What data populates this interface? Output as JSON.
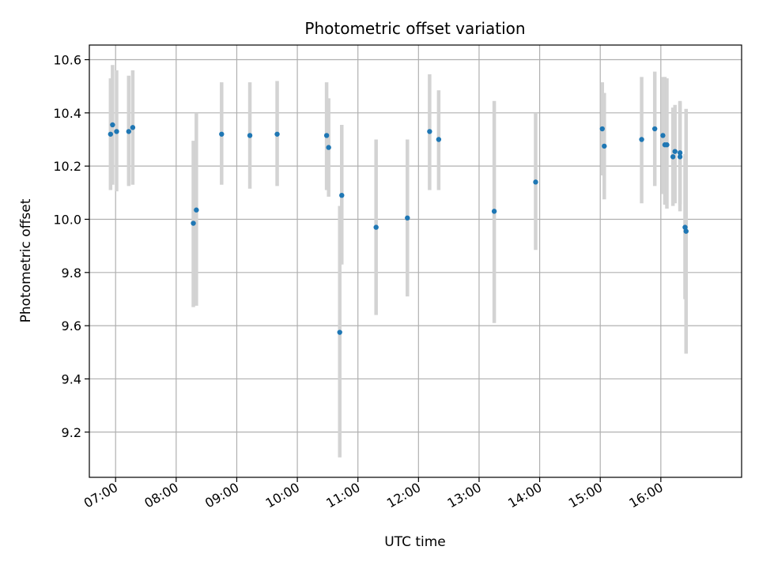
{
  "chart_data": {
    "type": "scatter",
    "title": "Photometric offset variation",
    "xlabel": "UTC time",
    "ylabel": "Photometric offset",
    "xlim": [
      "06:34",
      "17:20"
    ],
    "ylim": [
      9.03,
      10.655
    ],
    "x_ticks": [
      "07:00",
      "08:00",
      "09:00",
      "10:00",
      "11:00",
      "12:00",
      "13:00",
      "14:00",
      "15:00",
      "16:00"
    ],
    "y_ticks": [
      9.2,
      9.4,
      9.6,
      9.8,
      10.0,
      10.2,
      10.4,
      10.6
    ],
    "y_tick_labels": [
      "9.2",
      "9.4",
      "9.6",
      "9.8",
      "10.0",
      "10.2",
      "10.4",
      "10.6"
    ],
    "grid": true,
    "marker_color": "#1f77b4",
    "errorbar_color": "#d3d3d3",
    "points": [
      {
        "x": "06:55",
        "y": 10.32,
        "ylow": 10.11,
        "yhigh": 10.53
      },
      {
        "x": "06:57",
        "y": 10.355,
        "ylow": 10.13,
        "yhigh": 10.58
      },
      {
        "x": "07:01",
        "y": 10.33,
        "ylow": 10.105,
        "yhigh": 10.56
      },
      {
        "x": "07:13",
        "y": 10.33,
        "ylow": 10.125,
        "yhigh": 10.54
      },
      {
        "x": "07:17",
        "y": 10.345,
        "ylow": 10.13,
        "yhigh": 10.56
      },
      {
        "x": "08:17",
        "y": 9.985,
        "ylow": 9.67,
        "yhigh": 10.295
      },
      {
        "x": "08:20",
        "y": 10.035,
        "ylow": 9.675,
        "yhigh": 10.4
      },
      {
        "x": "08:45",
        "y": 10.32,
        "ylow": 10.13,
        "yhigh": 10.515
      },
      {
        "x": "09:13",
        "y": 10.315,
        "ylow": 10.115,
        "yhigh": 10.515
      },
      {
        "x": "09:40",
        "y": 10.32,
        "ylow": 10.125,
        "yhigh": 10.52
      },
      {
        "x": "10:29",
        "y": 10.315,
        "ylow": 10.11,
        "yhigh": 10.515
      },
      {
        "x": "10:31",
        "y": 10.27,
        "ylow": 10.085,
        "yhigh": 10.455
      },
      {
        "x": "10:42",
        "y": 9.575,
        "ylow": 9.105,
        "yhigh": 10.05
      },
      {
        "x": "10:44",
        "y": 10.09,
        "ylow": 9.83,
        "yhigh": 10.355
      },
      {
        "x": "11:18",
        "y": 9.97,
        "ylow": 9.64,
        "yhigh": 10.3
      },
      {
        "x": "11:49",
        "y": 10.005,
        "ylow": 9.71,
        "yhigh": 10.3
      },
      {
        "x": "12:11",
        "y": 10.33,
        "ylow": 10.11,
        "yhigh": 10.545
      },
      {
        "x": "12:20",
        "y": 10.3,
        "ylow": 10.11,
        "yhigh": 10.485
      },
      {
        "x": "13:15",
        "y": 10.03,
        "ylow": 9.61,
        "yhigh": 10.445
      },
      {
        "x": "13:56",
        "y": 10.14,
        "ylow": 9.885,
        "yhigh": 10.4
      },
      {
        "x": "15:02",
        "y": 10.34,
        "ylow": 10.165,
        "yhigh": 10.515
      },
      {
        "x": "15:04",
        "y": 10.275,
        "ylow": 10.075,
        "yhigh": 10.475
      },
      {
        "x": "15:41",
        "y": 10.3,
        "ylow": 10.06,
        "yhigh": 10.535
      },
      {
        "x": "15:54",
        "y": 10.34,
        "ylow": 10.125,
        "yhigh": 10.555
      },
      {
        "x": "16:02",
        "y": 10.315,
        "ylow": 10.095,
        "yhigh": 10.535
      },
      {
        "x": "16:04",
        "y": 10.28,
        "ylow": 10.055,
        "yhigh": 10.535
      },
      {
        "x": "16:06",
        "y": 10.28,
        "ylow": 10.04,
        "yhigh": 10.53
      },
      {
        "x": "16:12",
        "y": 10.235,
        "ylow": 10.05,
        "yhigh": 10.42
      },
      {
        "x": "16:14",
        "y": 10.255,
        "ylow": 10.06,
        "yhigh": 10.43
      },
      {
        "x": "16:19",
        "y": 10.235,
        "ylow": 10.03,
        "yhigh": 10.44
      },
      {
        "x": "16:19",
        "y": 10.25,
        "ylow": 10.055,
        "yhigh": 10.445
      },
      {
        "x": "16:24",
        "y": 9.97,
        "ylow": 9.7,
        "yhigh": 10.245
      },
      {
        "x": "16:25",
        "y": 9.955,
        "ylow": 9.495,
        "yhigh": 10.415
      }
    ]
  }
}
